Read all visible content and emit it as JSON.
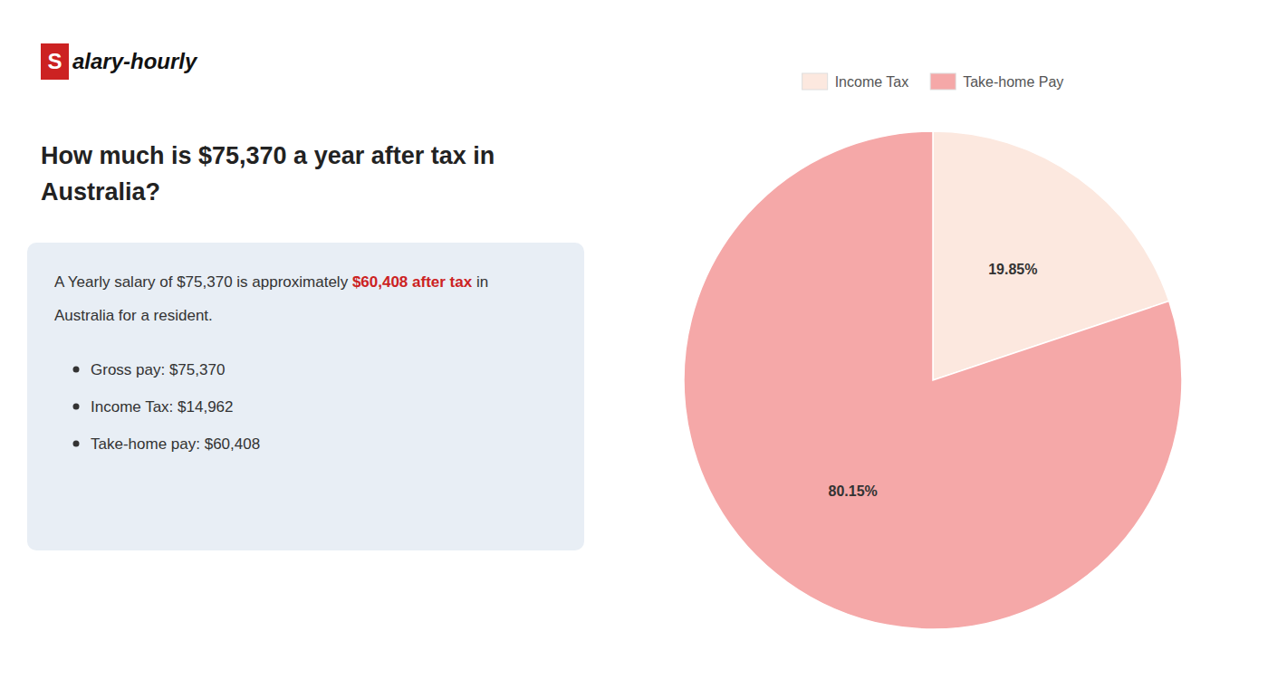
{
  "chart_data": {
    "type": "pie",
    "title": [
      "How much is $75,370 a year after tax in",
      "Australia?"
    ],
    "annotations": [
      [
        {
          "text": "S",
          "color": "#cc2222"
        },
        {
          "text": "alary-hourly"
        }
      ],
      [
        {
          "text": "A Yearly salary of $75,370 is approximately "
        },
        {
          "text": "$60,408 after tax",
          "color": "#cc2222"
        },
        {
          "text": " in"
        }
      ],
      [
        {
          "text": "Australia for a resident."
        }
      ],
      [
        {
          "text": "Gross pay: $75,370"
        }
      ],
      [
        {
          "text": "Income Tax: $14,962"
        }
      ],
      [
        {
          "text": "Take-home pay: $60,408"
        }
      ]
    ],
    "categories": [
      "Income Tax",
      "Take-home Pay"
    ],
    "values": [
      19.85,
      80.15
    ],
    "value_labels": [
      "19.85%",
      "80.15%"
    ],
    "data_labels": true,
    "colors": [
      "#fce8df",
      "#f5a8a8"
    ],
    "legend": "top"
  }
}
